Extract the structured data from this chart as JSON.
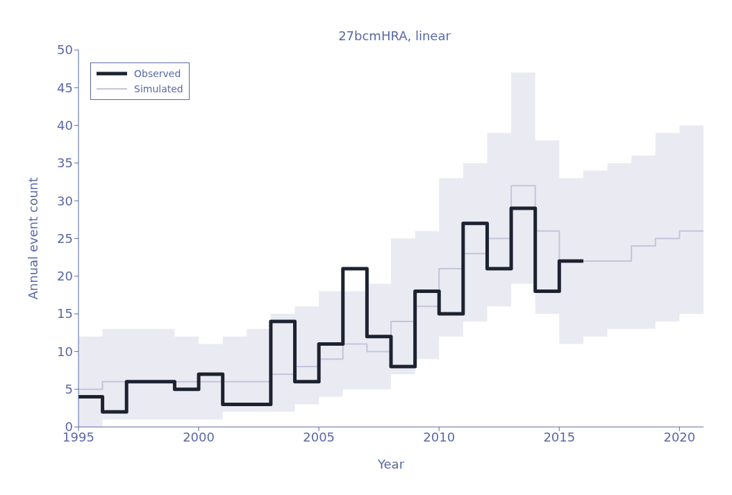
{
  "chart_data": {
    "type": "step",
    "title": "27bcmHRA, linear",
    "xlabel": "Year",
    "ylabel": "Annual event count",
    "xlim": [
      1995,
      2021
    ],
    "xticks": [
      1995,
      2000,
      2005,
      2010,
      2015,
      2020
    ],
    "ylim": [
      0,
      50
    ],
    "yticks": [
      0,
      5,
      10,
      15,
      20,
      25,
      30,
      35,
      40,
      45,
      50
    ],
    "grid": false,
    "legend": "top left",
    "line_style": "solid",
    "marker": "none",
    "series": [
      {
        "name": "Observed",
        "color": "#1c2230",
        "x": [
          1995,
          1996,
          1997,
          1998,
          1999,
          2000,
          2001,
          2002,
          2003,
          2004,
          2005,
          2006,
          2007,
          2008,
          2009,
          2010,
          2011,
          2012,
          2013,
          2014,
          2015,
          2016
        ],
        "values": [
          4,
          2,
          6,
          6,
          5,
          7,
          3,
          3,
          14,
          6,
          11,
          21,
          12,
          8,
          18,
          15,
          27,
          21,
          29,
          18,
          22,
          22
        ]
      },
      {
        "name": "Simulated",
        "color": "#c4c4dc",
        "x": [
          1995,
          1996,
          1997,
          1998,
          1999,
          2000,
          2001,
          2002,
          2003,
          2004,
          2005,
          2006,
          2007,
          2008,
          2009,
          2010,
          2011,
          2012,
          2013,
          2014,
          2015,
          2016,
          2017,
          2018,
          2019,
          2020,
          2021
        ],
        "values": [
          5,
          6,
          6,
          6,
          6,
          6,
          6,
          6,
          7,
          8,
          9,
          11,
          10,
          14,
          16,
          21,
          23,
          25,
          32,
          26,
          22,
          22,
          22,
          24,
          25,
          26,
          26
        ],
        "lower": [
          0,
          1,
          1,
          1,
          1,
          1,
          2,
          2,
          2,
          3,
          4,
          5,
          5,
          7,
          9,
          12,
          14,
          16,
          19,
          15,
          11,
          12,
          13,
          13,
          14,
          15,
          15
        ],
        "upper": [
          12,
          13,
          13,
          13,
          12,
          11,
          12,
          13,
          15,
          16,
          18,
          18,
          19,
          25,
          26,
          33,
          35,
          39,
          47,
          38,
          33,
          34,
          35,
          36,
          39,
          40,
          40
        ]
      }
    ]
  }
}
